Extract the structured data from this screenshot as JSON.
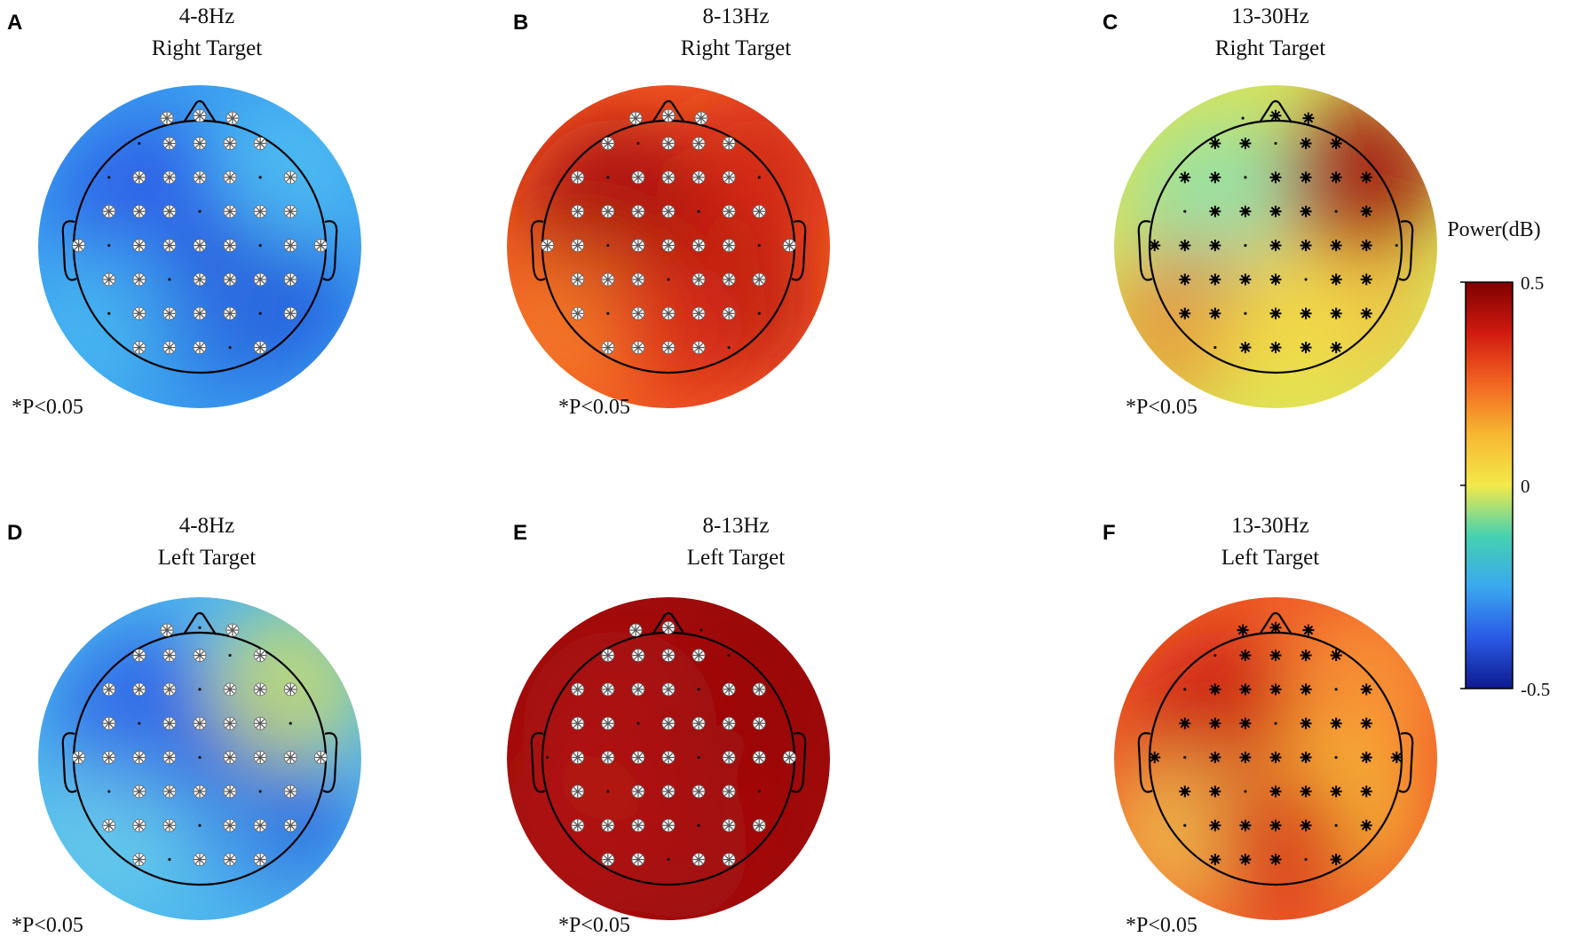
{
  "figure": {
    "panels": [
      {
        "letter": "A",
        "band": "4-8Hz",
        "target": "Right Target",
        "note": "*P<0.05",
        "marker_color": "white",
        "colors": {
          "base": "#3a9ef0",
          "blobs": [
            [
              "#2a55e6",
              0.8
            ],
            [
              "#1f3fd6",
              0.7
            ],
            [
              "#4fc6f0",
              0.6
            ],
            [
              "#5ad0f3",
              0.55
            ],
            [
              "#2f7fe6",
              0.55
            ]
          ]
        }
      },
      {
        "letter": "B",
        "band": "8-13Hz",
        "target": "Right Target",
        "note": "*P<0.05",
        "marker_color": "white",
        "colors": {
          "base": "#f25a25",
          "blobs": [
            [
              "#a80f0f",
              0.9
            ],
            [
              "#b81a12",
              0.85
            ],
            [
              "#f58a2a",
              0.6
            ],
            [
              "#c82010",
              0.7
            ],
            [
              "#e03018",
              0.6
            ]
          ]
        }
      },
      {
        "letter": "C",
        "band": "13-30Hz",
        "target": "Right Target",
        "note": "*P<0.05",
        "marker_color": "black",
        "colors": {
          "base": "#d8e35a",
          "blobs": [
            [
              "#7fe0c0",
              0.7
            ],
            [
              "#fbb03a",
              0.65
            ],
            [
              "#f0702a",
              0.6
            ],
            [
              "#a01010",
              0.85
            ],
            [
              "#f3e94a",
              0.6
            ]
          ]
        }
      },
      {
        "letter": "D",
        "band": "4-8Hz",
        "target": "Left Target",
        "note": "*P<0.05",
        "marker_color": "white",
        "colors": {
          "base": "#4ab4ee",
          "blobs": [
            [
              "#2a5ae6",
              0.8
            ],
            [
              "#1f40d8",
              0.7
            ],
            [
              "#7ad8e8",
              0.55
            ],
            [
              "#d8e060",
              0.75
            ],
            [
              "#5ccaf0",
              0.5
            ]
          ]
        }
      },
      {
        "letter": "E",
        "band": "8-13Hz",
        "target": "Left Target",
        "note": "*P<0.05",
        "marker_color": "white",
        "colors": {
          "base": "#9e0c0c",
          "blobs": [
            [
              "#b81812",
              0.5
            ],
            [
              "#a50f0f",
              0.4
            ],
            [
              "#c52216",
              0.35
            ],
            [
              "#960a0a",
              0.4
            ],
            [
              "#b01414",
              0.4
            ]
          ]
        }
      },
      {
        "letter": "F",
        "band": "13-30Hz",
        "target": "Left Target",
        "note": "*P<0.05",
        "marker_color": "black",
        "colors": {
          "base": "#f05a28",
          "blobs": [
            [
              "#c41a14",
              0.75
            ],
            [
              "#f6d03c",
              0.7
            ],
            [
              "#f0e65a",
              0.6
            ],
            [
              "#fbb03a",
              0.6
            ],
            [
              "#d02818",
              0.7
            ]
          ]
        }
      }
    ],
    "colorbar": {
      "title": "Power(dB)",
      "ticks": [
        "0.5",
        "0",
        "-0.5"
      ],
      "stops": [
        "#7f0000",
        "#d11a10",
        "#f26522",
        "#f7b731",
        "#f3e94a",
        "#45d1b0",
        "#3aa8ef",
        "#2a5ae6",
        "#0d1a8e"
      ]
    }
  }
}
